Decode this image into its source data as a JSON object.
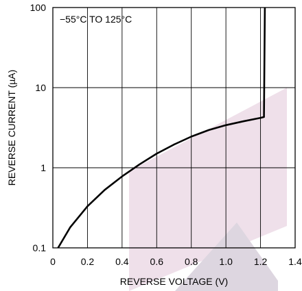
{
  "chart_data": {
    "type": "line",
    "title": "",
    "annotation": "−55°C TO 125°C",
    "xlabel": "REVERSE VOLTAGE (V)",
    "ylabel": "REVERSE CURRENT (µA)",
    "xlim": [
      0,
      1.4
    ],
    "ylim": [
      0.1,
      100
    ],
    "yscale": "log",
    "grid": true,
    "legend": "none",
    "x_ticks": [
      {
        "value": 0,
        "label": "0"
      },
      {
        "value": 0.2,
        "label": "0.2"
      },
      {
        "value": 0.4,
        "label": "0.4"
      },
      {
        "value": 0.6,
        "label": "0.6"
      },
      {
        "value": 0.8,
        "label": "0.8"
      },
      {
        "value": 1.0,
        "label": "1.0"
      },
      {
        "value": 1.2,
        "label": "1.2"
      },
      {
        "value": 1.4,
        "label": "1.4"
      }
    ],
    "y_ticks": [
      {
        "value": 0.1,
        "label": "0.1"
      },
      {
        "value": 1,
        "label": "1"
      },
      {
        "value": 10,
        "label": "10"
      },
      {
        "value": 100,
        "label": "100"
      }
    ],
    "series": [
      {
        "color": "#000000",
        "x": [
          0.03,
          0.1,
          0.2,
          0.3,
          0.4,
          0.5,
          0.6,
          0.7,
          0.8,
          0.9,
          1.0,
          1.1,
          1.2,
          1.22,
          1.22,
          1.225
        ],
        "y": [
          0.1,
          0.18,
          0.33,
          0.53,
          0.78,
          1.1,
          1.5,
          1.95,
          2.45,
          2.95,
          3.4,
          3.8,
          4.2,
          4.3,
          4.5,
          100
        ]
      }
    ]
  }
}
